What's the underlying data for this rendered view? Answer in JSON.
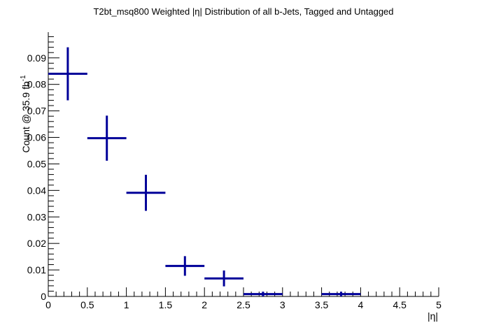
{
  "chart_data": {
    "type": "scatter",
    "style": "histogram-error-bars",
    "title": "T2bt_msq800 Weighted |η| Distribution of all b-Jets, Tagged and Untagged",
    "xlabel": "|η|",
    "ylabel": "Count @ 35.9 fb",
    "ylabel_superscript": "-1",
    "xlim": [
      0,
      5
    ],
    "ylim": [
      0,
      0.1
    ],
    "x_ticks": [
      "0",
      "0.5",
      "1",
      "1.5",
      "2",
      "2.5",
      "3",
      "3.5",
      "4",
      "4.5",
      "5"
    ],
    "y_ticks": [
      "0",
      "0.01",
      "0.02",
      "0.03",
      "0.04",
      "0.05",
      "0.06",
      "0.07",
      "0.08",
      "0.09"
    ],
    "grid": false,
    "color": "#000099",
    "series": [
      {
        "points": [
          {
            "x": 0.25,
            "xerr": 0.25,
            "y": 0.084,
            "yerr": 0.01
          },
          {
            "x": 0.75,
            "xerr": 0.25,
            "y": 0.0597,
            "yerr": 0.0085
          },
          {
            "x": 1.25,
            "xerr": 0.25,
            "y": 0.0391,
            "yerr": 0.0068
          },
          {
            "x": 1.75,
            "xerr": 0.25,
            "y": 0.0115,
            "yerr": 0.0037
          },
          {
            "x": 2.25,
            "xerr": 0.25,
            "y": 0.0068,
            "yerr": 0.003
          },
          {
            "x": 2.75,
            "xerr": 0.25,
            "y": 0.0009,
            "yerr": 0.0009
          },
          {
            "x": 3.75,
            "xerr": 0.25,
            "y": 0.0009,
            "yerr": 0.0009
          }
        ]
      }
    ]
  }
}
